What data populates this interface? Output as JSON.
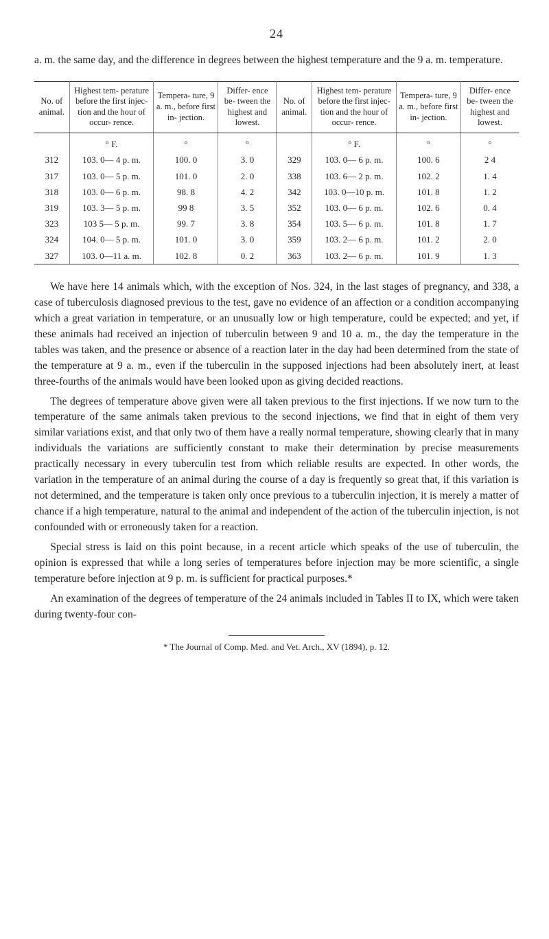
{
  "page_number": "24",
  "intro": "a. m. the same day, and the difference in degrees between the highest temperature and the 9 a. m. temperature.",
  "table": {
    "headers": [
      "No. of animal.",
      "Highest tem- perature before the first injec- tion and the hour of occur- rence.",
      "Tempera- ture, 9 a. m., before first in- jection.",
      "Differ- ence be- tween the highest and lowest.",
      "No. of animal.",
      "Highest tem- perature before the first injec- tion and the hour of occur- rence.",
      "Tempera- ture, 9 a. m., before first in- jection.",
      "Differ- ence be- tween the highest and lowest."
    ],
    "deg_left": "° F.",
    "deg_right": "° F.",
    "rows": [
      [
        "312",
        "103. 0— 4 p. m.",
        "100. 0",
        "3. 0",
        "329",
        "103. 0— 6 p. m.",
        "100. 6",
        "2 4"
      ],
      [
        "317",
        "103. 0— 5 p. m.",
        "101. 0",
        "2. 0",
        "338",
        "103. 6— 2 p. m.",
        "102. 2",
        "1. 4"
      ],
      [
        "318",
        "103. 0— 6 p. m.",
        "98. 8",
        "4. 2",
        "342",
        "103. 0—10 p. m.",
        "101. 8",
        "1. 2"
      ],
      [
        "319",
        "103. 3— 5 p. m.",
        "99 8",
        "3. 5",
        "352",
        "103. 0— 6 p. m.",
        "102. 6",
        "0. 4"
      ],
      [
        "323",
        "103 5— 5 p. m.",
        "99. 7",
        "3. 8",
        "354",
        "103. 5— 6 p. m.",
        "101. 8",
        "1. 7"
      ],
      [
        "324",
        "104. 0— 5 p. m.",
        "101. 0",
        "3. 0",
        "359",
        "103. 2— 6 p. m.",
        "101. 2",
        "2. 0"
      ],
      [
        "327",
        "103. 0—11 a. m.",
        "102. 8",
        "0. 2",
        "363",
        "103. 2— 6 p. m.",
        "101. 9",
        "1. 3"
      ]
    ]
  },
  "paragraphs": [
    "We have here 14 animals which, with the exception of Nos. 324, in the last stages of pregnancy, and 338, a case of tuberculosis diagnosed previous to the test, gave no evidence of an affection or a condition accompanying which a great variation in temperature, or an unusually low or high temperature, could be expected; and yet, if these animals had received an injection of tuberculin between 9 and 10 a. m., the day the temperature in the tables was taken, and the presence or absence of a reaction later in the day had been determined from the state of the temperature at 9 a. m., even if the tuberculin in the supposed injections had been absolutely inert, at least three-fourths of the animals would have been looked upon as giving decided reactions.",
    "The degrees of temperature above given were all taken previous to the first injections. If we now turn to the temperature of the same animals taken previous to the second injections, we find that in eight of them very similar variations exist, and that only two of them have a really normal temperature, showing clearly that in many individuals the variations are sufficiently constant to make their determination by precise measurements practically necessary in every tuberculin test from which reliable results are expected. In other words, the variation in the temperature of an animal during the course of a day is frequently so great that, if this variation is not determined, and the temperature is taken only once previous to a tuberculin injection, it is merely a matter of chance if a high temperature, natural to the animal and independent of the action of the tuberculin injection, is not confounded with or erroneously taken for a reaction.",
    "Special stress is laid on this point because, in a recent article which speaks of the use of tuberculin, the opinion is expressed that while a long series of temperatures before injection may be more scientific, a single temperature before injection at 9 p. m. is sufficient for practical purposes.*",
    "An examination of the degrees of temperature of the 24 animals included in Tables II to IX, which were taken during twenty-four con-"
  ],
  "footnote": "* The Journal of Comp. Med. and Vet. Arch., XV (1894), p. 12."
}
